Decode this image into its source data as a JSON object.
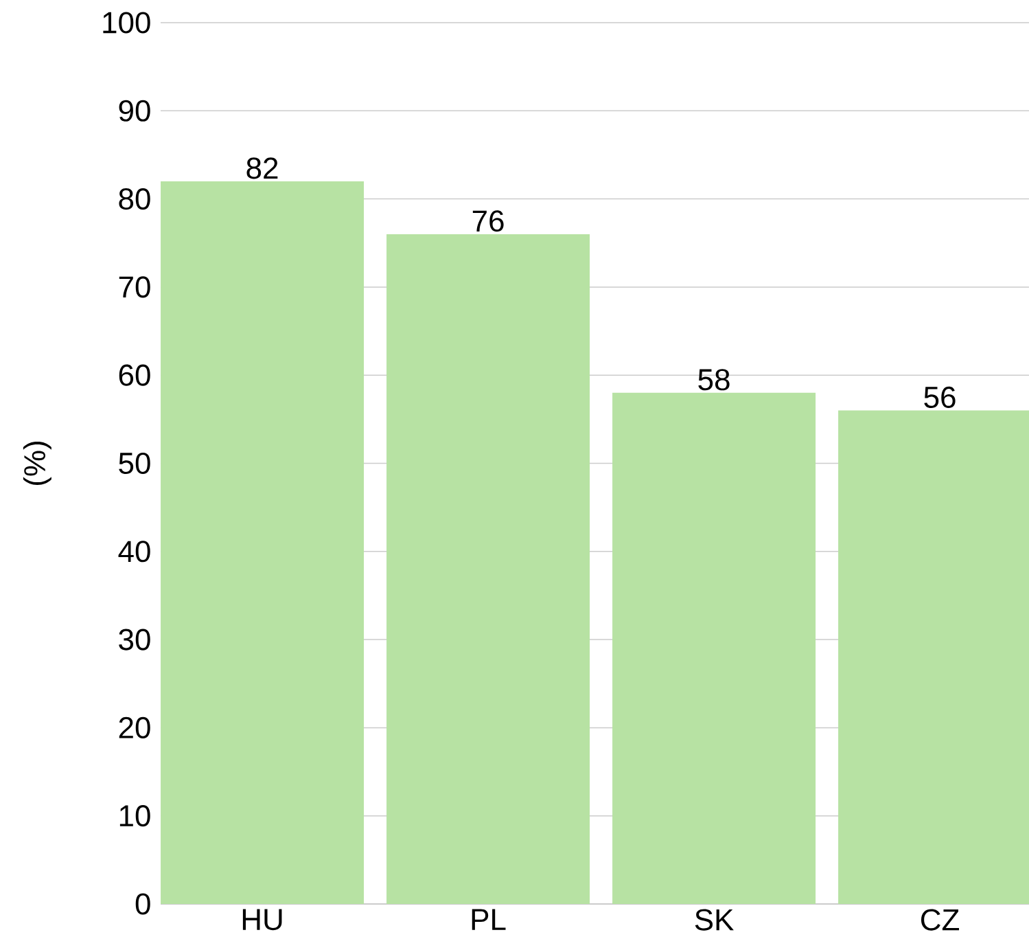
{
  "chart_data": {
    "type": "bar",
    "ylabel": "(%)",
    "categories": [
      "HU",
      "PL",
      "SK",
      "CZ"
    ],
    "values": [
      82,
      76,
      58,
      56
    ],
    "color": "#b7e2a3",
    "ylim": [
      0,
      100
    ],
    "yticks": [
      0,
      10,
      20,
      30,
      40,
      50,
      60,
      70,
      80,
      90,
      100
    ],
    "grid": "y",
    "data_labels": true
  }
}
